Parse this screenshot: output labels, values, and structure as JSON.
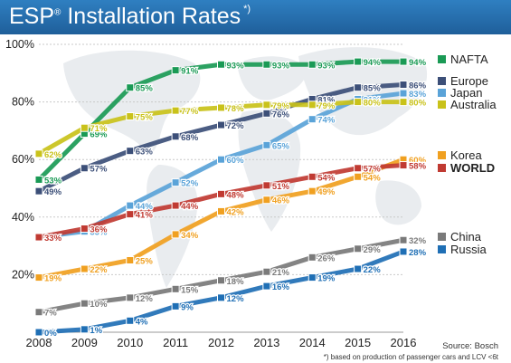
{
  "header": {
    "title": "ESP",
    "title_suffix": "Installation Rates",
    "reg_mark": "®",
    "note_mark": "*)"
  },
  "source": "Source: Bosch",
  "footnote": "*) based on production of passenger cars and LCV <6t",
  "chart_data": {
    "type": "line",
    "x": [
      2008,
      2009,
      2010,
      2011,
      2012,
      2013,
      2014,
      2015,
      2016
    ],
    "x_tick_labels": [
      "2008",
      "2009",
      "2010",
      "2011",
      "2012",
      "2013",
      "2014",
      "2015",
      "2016"
    ],
    "ylim": [
      0,
      100
    ],
    "y_ticks": [
      20,
      40,
      60,
      80,
      100
    ],
    "y_tick_labels": [
      "20%",
      "40%",
      "60%",
      "80%",
      "100%"
    ],
    "grid": "horizontal",
    "legend_position": "right",
    "series": [
      {
        "name": "NAFTA",
        "color": "#1a9a55",
        "values": [
          53,
          69,
          85,
          91,
          93,
          93,
          93,
          94,
          94
        ],
        "labels": [
          "53%",
          "69%",
          "85%",
          "91%",
          "93%",
          "93%",
          "93%",
          "94%",
          "94%"
        ]
      },
      {
        "name": "Europe",
        "color": "#3c4f78",
        "values": [
          49,
          57,
          63,
          68,
          72,
          76,
          81,
          85,
          86
        ],
        "labels": [
          "49%",
          "57%",
          "63%",
          "68%",
          "72%",
          "76%",
          "81%",
          "85%",
          "86%"
        ]
      },
      {
        "name": "Japan",
        "color": "#5aa3d8",
        "values": [
          33,
          35,
          44,
          52,
          60,
          65,
          74,
          81,
          83
        ],
        "labels": [
          "33%",
          "35%",
          "44%",
          "52%",
          "60%",
          "65%",
          "74%",
          "81%",
          "83%"
        ]
      },
      {
        "name": "Australia",
        "color": "#c9c21a",
        "values": [
          62,
          71,
          75,
          77,
          78,
          79,
          79,
          80,
          80
        ],
        "labels": [
          "62%",
          "71%",
          "75%",
          "77%",
          "78%",
          "79%",
          "79%",
          "80%",
          "80%"
        ]
      },
      {
        "name": "Korea",
        "color": "#f0a020",
        "values": [
          19,
          22,
          25,
          34,
          42,
          46,
          49,
          54,
          60
        ],
        "labels": [
          "19%",
          "22%",
          "25%",
          "34%",
          "42%",
          "46%",
          "49%",
          "54%",
          "60%"
        ]
      },
      {
        "name": "WORLD",
        "color": "#c03a32",
        "values": [
          33,
          36,
          41,
          44,
          48,
          51,
          54,
          57,
          58
        ],
        "labels": [
          "33%",
          "36%",
          "41%",
          "44%",
          "48%",
          "51%",
          "54%",
          "57%",
          "58%"
        ]
      },
      {
        "name": "China",
        "color": "#7a7a7a",
        "values": [
          7,
          10,
          12,
          15,
          18,
          21,
          26,
          29,
          32
        ],
        "labels": [
          "7%",
          "10%",
          "12%",
          "15%",
          "18%",
          "21%",
          "26%",
          "29%",
          "32%"
        ]
      },
      {
        "name": "Russia",
        "color": "#1f6fb5",
        "values": [
          0,
          1,
          4,
          9,
          12,
          16,
          19,
          22,
          28
        ],
        "labels": [
          "0%",
          "1%",
          "4%",
          "9%",
          "12%",
          "16%",
          "19%",
          "22%",
          "28%"
        ]
      }
    ]
  }
}
